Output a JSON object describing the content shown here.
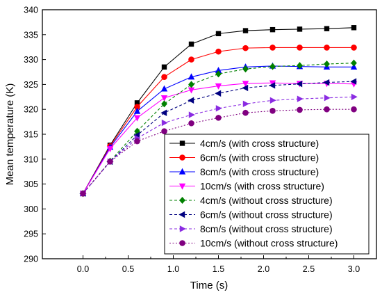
{
  "chart_data": {
    "type": "line",
    "xlabel": "Time (s)",
    "ylabel": "Mean temperature (K)",
    "xlim": [
      -0.45,
      3.25
    ],
    "ylim": [
      290,
      340
    ],
    "x_ticks": [
      "0.0",
      "0.5",
      "1.0",
      "1.5",
      "2.0",
      "2.5",
      "3.0"
    ],
    "y_ticks": [
      "290",
      "295",
      "300",
      "305",
      "310",
      "315",
      "320",
      "325",
      "330",
      "335",
      "340"
    ],
    "x": [
      0.0,
      0.3,
      0.6,
      0.9,
      1.2,
      1.5,
      1.8,
      2.1,
      2.4,
      2.7,
      3.0
    ],
    "grid": false,
    "legend_position": "bottom-right",
    "series": [
      {
        "name": "4cm/s (with cross structure)",
        "color": "#000000",
        "marker": "square",
        "dash": "solid",
        "values": [
          303.1,
          312.8,
          321.3,
          328.5,
          333.1,
          335.2,
          335.8,
          336.0,
          336.1,
          336.2,
          336.4
        ]
      },
      {
        "name": "6cm/s (with cross structure)",
        "color": "#ff0000",
        "marker": "circle",
        "dash": "solid",
        "values": [
          303.1,
          312.6,
          320.5,
          326.5,
          330.0,
          331.6,
          332.3,
          332.4,
          332.4,
          332.4,
          332.4
        ]
      },
      {
        "name": "8cm/s (with cross structure)",
        "color": "#0000ff",
        "marker": "triangle-up",
        "dash": "solid",
        "values": [
          303.1,
          312.4,
          319.6,
          324.1,
          326.5,
          327.8,
          328.5,
          328.7,
          328.6,
          328.5,
          328.5
        ]
      },
      {
        "name": "10cm/s (with cross structure)",
        "color": "#ff00ff",
        "marker": "triangle-down",
        "dash": "solid",
        "values": [
          303.1,
          312.1,
          318.3,
          322.3,
          323.9,
          324.7,
          325.2,
          325.3,
          325.2,
          325.2,
          325.1
        ]
      },
      {
        "name": "4cm/s (without cross structure)",
        "color": "#008000",
        "marker": "diamond",
        "dash": "dash",
        "values": [
          303.1,
          309.6,
          315.6,
          321.1,
          325.0,
          327.1,
          328.1,
          328.6,
          328.8,
          329.1,
          329.3
        ]
      },
      {
        "name": "6cm/s (without cross structure)",
        "color": "#000080",
        "marker": "triangle-left",
        "dash": "dash",
        "values": [
          303.1,
          309.5,
          314.8,
          319.3,
          321.8,
          323.2,
          324.3,
          324.8,
          325.1,
          325.4,
          325.6
        ]
      },
      {
        "name": "8cm/s (without cross structure)",
        "color": "#8a2be2",
        "marker": "triangle-right",
        "dash": "dash",
        "values": [
          303.1,
          309.5,
          314.2,
          317.3,
          318.9,
          320.2,
          321.1,
          321.8,
          322.1,
          322.3,
          322.5
        ]
      },
      {
        "name": "10cm/s (without cross structure)",
        "color": "#800080",
        "marker": "circle",
        "dash": "dot",
        "values": [
          303.1,
          309.5,
          313.6,
          315.6,
          317.2,
          318.3,
          319.3,
          319.7,
          319.9,
          320.0,
          320.0
        ]
      }
    ]
  }
}
